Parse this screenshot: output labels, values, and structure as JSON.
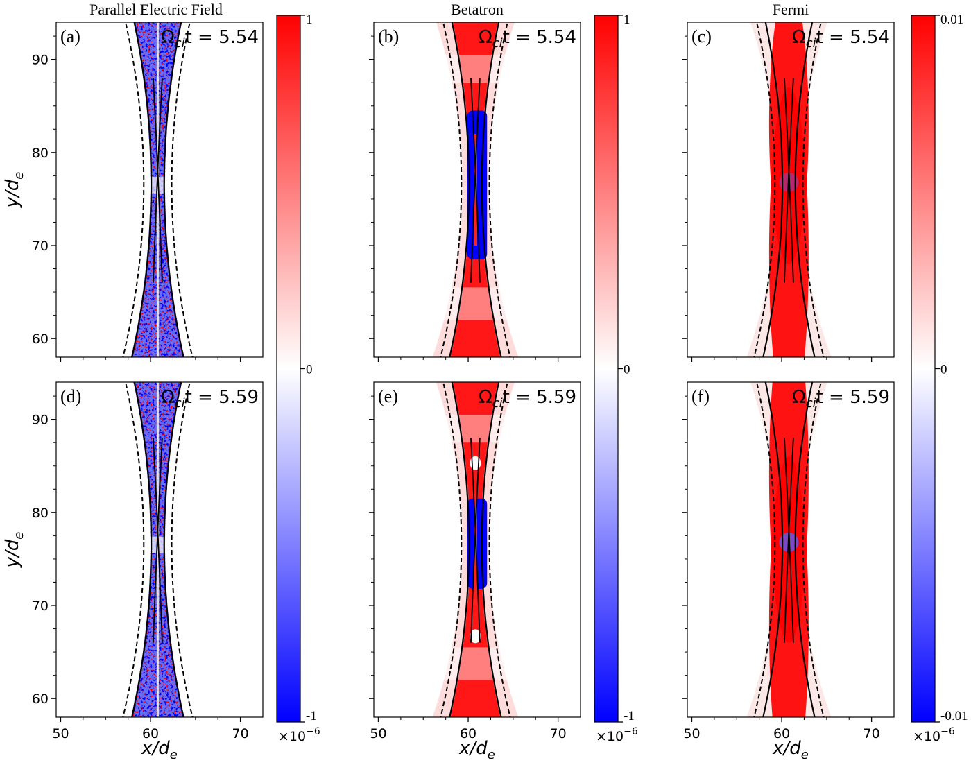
{
  "chart_data": {
    "type": "heatmap",
    "columns": [
      {
        "id": "parallel",
        "title": "Parallel Electric Field",
        "colorbar": {
          "max": "1",
          "mid": "0",
          "min": "-1",
          "scale": "×10",
          "scale_exp": "−6"
        },
        "vlim": [
          -1,
          1
        ]
      },
      {
        "id": "betatron",
        "title": "Betatron",
        "colorbar": {
          "max": "1",
          "mid": "0",
          "min": "-1",
          "scale": "×10",
          "scale_exp": "−6"
        },
        "vlim": [
          -1,
          1
        ]
      },
      {
        "id": "fermi",
        "title": "Fermi",
        "colorbar": {
          "max": "0.01",
          "mid": "0",
          "min": "-0.01",
          "scale": "×10",
          "scale_exp": "−6"
        },
        "vlim": [
          -0.01,
          0.01
        ]
      }
    ],
    "panels": [
      {
        "label": "(a)",
        "column": "parallel",
        "time_label": "Ω",
        "time_sub": "ci",
        "time_rest": "t = 5.54",
        "time": 5.54
      },
      {
        "label": "(b)",
        "column": "betatron",
        "time_label": "Ω",
        "time_sub": "ci",
        "time_rest": "t = 5.54",
        "time": 5.54
      },
      {
        "label": "(c)",
        "column": "fermi",
        "time_label": "Ω",
        "time_sub": "ci",
        "time_rest": "t = 5.54",
        "time": 5.54
      },
      {
        "label": "(d)",
        "column": "parallel",
        "time_label": "Ω",
        "time_sub": "ci",
        "time_rest": "t = 5.59",
        "time": 5.59
      },
      {
        "label": "(e)",
        "column": "betatron",
        "time_label": "Ω",
        "time_sub": "ci",
        "time_rest": "t = 5.59",
        "time": 5.59
      },
      {
        "label": "(f)",
        "column": "fermi",
        "time_label": "Ω",
        "time_sub": "ci",
        "time_rest": "t = 5.59",
        "time": 5.59
      }
    ],
    "xlabel": "x/d",
    "xlabel_sub": "e",
    "ylabel": "y/d",
    "ylabel_sub": "e",
    "xlim": [
      49.5,
      72.5
    ],
    "ylim": [
      58,
      94
    ],
    "xticks": [
      50,
      60,
      70
    ],
    "yticks": [
      60,
      70,
      80,
      90
    ],
    "colormap": "bwr",
    "colors": {
      "positive": "#ff0000",
      "negative": "#0000ff",
      "zero": "#ffffff",
      "contour": "#000000"
    }
  }
}
